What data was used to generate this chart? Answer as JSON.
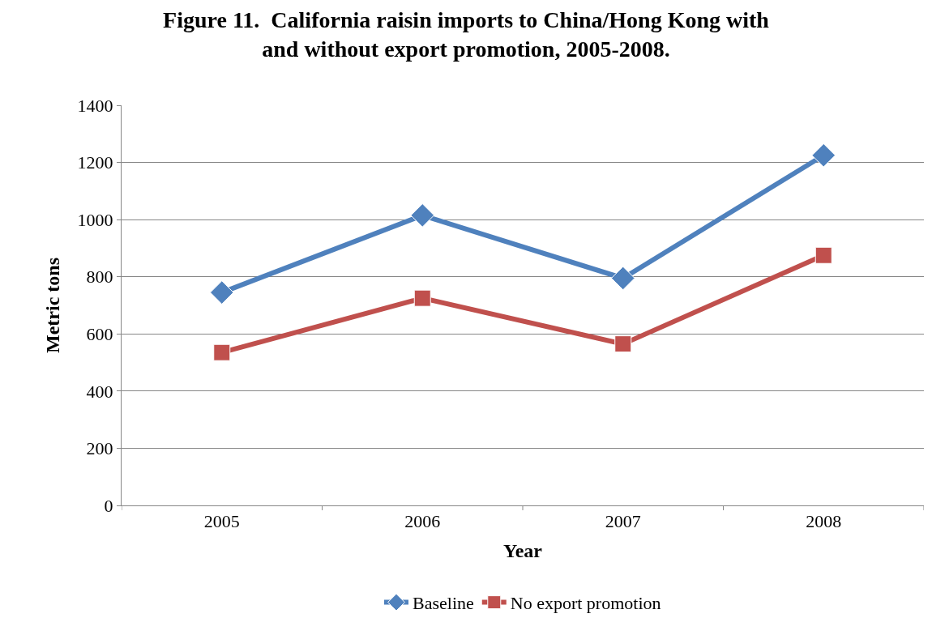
{
  "chart_data": {
    "type": "line",
    "title": "Figure 11.  California raisin imports to China/Hong Kong with\nand without export promotion, 2005-2008.",
    "xlabel": "Year",
    "ylabel": "Metric tons",
    "categories": [
      "2005",
      "2006",
      "2007",
      "2008"
    ],
    "series": [
      {
        "name": "Baseline",
        "color": "#4f81bd",
        "marker": "diamond",
        "values": [
          745,
          1015,
          795,
          1225
        ]
      },
      {
        "name": "No export promotion",
        "color": "#c0504d",
        "marker": "square",
        "values": [
          535,
          725,
          565,
          875
        ]
      }
    ],
    "ylim": [
      0,
      1400
    ],
    "yticks": [
      0,
      200,
      400,
      600,
      800,
      1000,
      1200,
      1400
    ],
    "grid": "y",
    "legend": "bottom",
    "line_style": "solid"
  }
}
